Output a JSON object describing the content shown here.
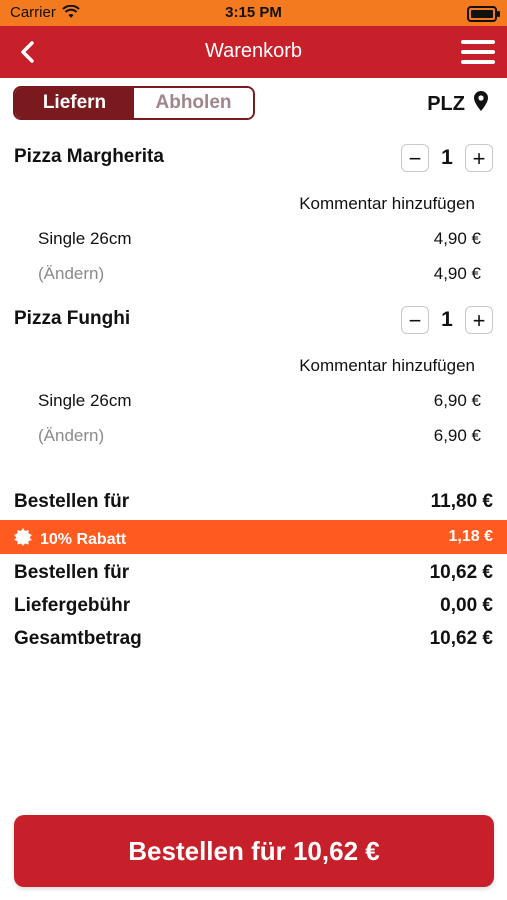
{
  "status_bar": {
    "carrier": "Carrier",
    "time": "3:15 PM"
  },
  "header": {
    "title": "Warenkorb"
  },
  "mode_toggle": {
    "deliver": "Liefern",
    "pickup": "Abholen"
  },
  "plz": "PLZ",
  "items": [
    {
      "name": "Pizza Margherita",
      "quantity": "1",
      "comment": "Kommentar hinzufügen",
      "size_label": "Single 26cm",
      "size_price": "4,90 €",
      "change_label": "(Ändern)",
      "total_price": "4,90 €"
    },
    {
      "name": "Pizza Funghi",
      "quantity": "1",
      "comment": "Kommentar hinzufügen",
      "size_label": "Single 26cm",
      "size_price": "6,90 €",
      "change_label": "(Ändern)",
      "total_price": "6,90 €"
    }
  ],
  "summary": {
    "subtotal_label": "Bestellen für",
    "subtotal_value": "11,80 €",
    "discount_label": "10% Rabatt",
    "discount_value": "1,18 €",
    "after_discount_label": "Bestellen für",
    "after_discount_value": "10,62 €",
    "delivery_label": "Liefergebühr",
    "delivery_value": "0,00 €",
    "total_label": "Gesamtbetrag",
    "total_value": "10,62 €"
  },
  "order_button": "Bestellen für 10,62 €",
  "colors": {
    "primary": "#c8202a",
    "status_bar": "#f47a1f",
    "discount": "#ff5a1f",
    "toggle_active": "#7a1a1e"
  },
  "icons": [
    "wifi-icon",
    "battery-icon",
    "back-arrow-icon",
    "hamburger-menu-icon",
    "location-pin-icon",
    "minus-icon",
    "plus-icon",
    "discount-badge-icon"
  ]
}
